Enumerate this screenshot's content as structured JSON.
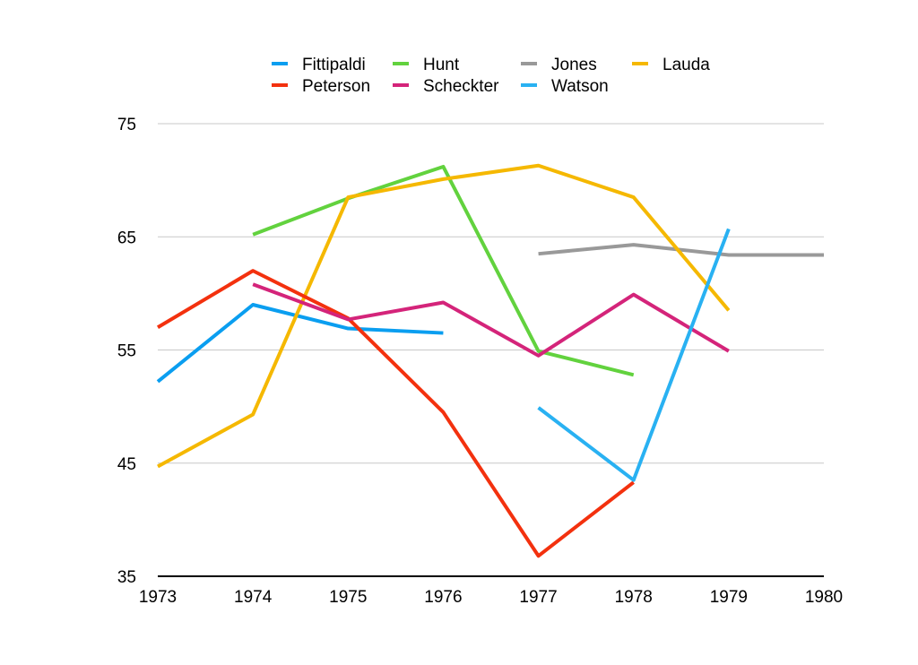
{
  "chart_data": {
    "type": "line",
    "title": "",
    "xlabel": "",
    "ylabel": "",
    "x": [
      1973,
      1974,
      1975,
      1976,
      1977,
      1978,
      1979,
      1980
    ],
    "xlim": [
      1973,
      1980
    ],
    "ylim": [
      35,
      75
    ],
    "yticks": [
      35,
      45,
      55,
      65,
      75
    ],
    "grid": "horizontal",
    "legend_position": "top",
    "series": [
      {
        "name": "Fittipaldi",
        "color": "#0a9ef0",
        "values": [
          52.2,
          59.0,
          56.9,
          56.5,
          null,
          null,
          null,
          null
        ]
      },
      {
        "name": "Hunt",
        "color": "#62d23e",
        "values": [
          null,
          65.2,
          68.4,
          71.2,
          54.9,
          52.8,
          null,
          null
        ]
      },
      {
        "name": "Jones",
        "color": "#999999",
        "values": [
          null,
          null,
          null,
          null,
          63.5,
          64.3,
          63.4,
          63.4
        ]
      },
      {
        "name": "Lauda",
        "color": "#f5b800",
        "values": [
          44.7,
          49.3,
          68.5,
          70.1,
          71.3,
          68.5,
          58.5,
          null
        ]
      },
      {
        "name": "Peterson",
        "color": "#f3310e",
        "values": [
          57.0,
          62.0,
          57.8,
          49.5,
          36.8,
          43.3,
          null,
          null
        ]
      },
      {
        "name": "Scheckter",
        "color": "#d4247a",
        "values": [
          null,
          60.8,
          57.7,
          59.2,
          54.5,
          59.9,
          54.9,
          null
        ]
      },
      {
        "name": "Watson",
        "color": "#29b1f2",
        "values": [
          null,
          null,
          null,
          null,
          49.9,
          43.5,
          65.7,
          null
        ]
      }
    ]
  }
}
